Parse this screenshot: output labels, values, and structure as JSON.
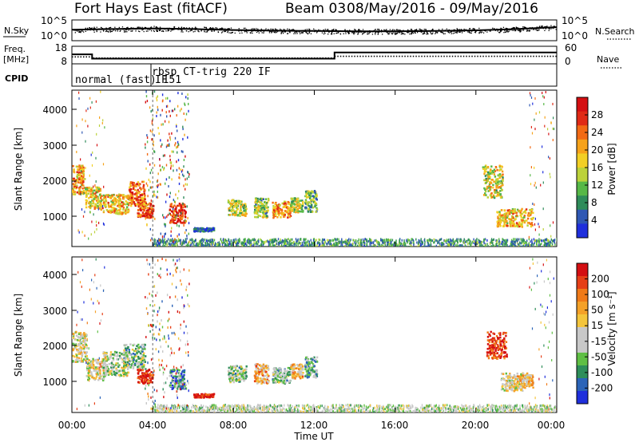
{
  "header": {
    "title": "Fort Hays East (fitACF)",
    "beam": "Beam 03",
    "date_range": "08/May/2016 - 09/May/2016"
  },
  "side_labels": {
    "nsky": "N.Sky",
    "freq_line1": "Freq.",
    "freq_line2": "[MHz]",
    "cpid": "CPID",
    "nsearch": "N.Search",
    "nave": "Nave"
  },
  "cpid_labels": [
    "normal (fast) 151",
    "rbsp CT-trig 220 IF",
    "IF"
  ],
  "colorbars": {
    "power": {
      "label": "Power [dB]",
      "ticks": [
        "28",
        "24",
        "20",
        "16",
        "12",
        "8",
        "4"
      ],
      "colors": [
        "#1f2fdc",
        "#2f58b4",
        "#2f8c5a",
        "#57b847",
        "#bcd23a",
        "#f2cf25",
        "#f6a21a",
        "#f26a14",
        "#e02a15",
        "#d40f12"
      ]
    },
    "velocity": {
      "label": "Velocity [m s⁻¹]",
      "ticks": [
        "200",
        "100",
        "50",
        "15",
        "-15",
        "-50",
        "-100",
        "-200"
      ],
      "colors": [
        "#1f2fdc",
        "#2b64b8",
        "#2e8e5a",
        "#5fbf44",
        "#c8c8c8",
        "#c8c8c8",
        "#f4c53c",
        "#f4a128",
        "#f07a18",
        "#e63f17",
        "#d40f12"
      ]
    }
  },
  "chart_data": [
    {
      "type": "line",
      "name": "sky noise",
      "ylabel": "N.Sky",
      "yticks": [
        "10^5",
        "10^0"
      ],
      "y2label": "N.Search",
      "y2ticks": [
        "10^5",
        "10^0"
      ],
      "x": [
        "00:00",
        "02:00",
        "04:00",
        "06:00",
        "08:00",
        "10:00",
        "12:00",
        "14:00",
        "16:00",
        "18:00",
        "20:00",
        "22:00",
        "24:00"
      ],
      "values": [
        3.2,
        3.4,
        3.6,
        3.4,
        3.1,
        2.9,
        2.8,
        2.7,
        2.7,
        2.8,
        3.0,
        3.4,
        4.0
      ]
    },
    {
      "type": "line",
      "ylabel": "Freq. [MHz]",
      "yticks": [
        "18",
        "8"
      ],
      "y2label": "Nave",
      "y2ticks": [
        "60",
        "0"
      ],
      "series": [
        {
          "x": [
            0,
            1.0,
            1.0,
            13.0,
            13.0,
            24
          ],
          "values": [
            13.5,
            13.5,
            10.5,
            10.5,
            14.8,
            14.8
          ]
        },
        {
          "x": [
            0,
            1.0,
            1.0,
            13.0,
            13.0,
            24
          ],
          "values": [
            11.7,
            11.7,
            10.9,
            10.9,
            12.1,
            12.1
          ]
        }
      ]
    },
    {
      "type": "heatmap",
      "ylabel": "Slant Range [km]",
      "yticks": [
        "4000",
        "3000",
        "2000",
        "1000"
      ],
      "ylim": [
        180,
        4500
      ],
      "colorbar": "Power [dB]",
      "clim": [
        0,
        30
      ],
      "patches": [
        {
          "t0": 0.0,
          "t1": 0.6,
          "r0": 1650,
          "r1": 2450,
          "v": 20
        },
        {
          "t0": 0.6,
          "t1": 1.4,
          "r0": 1250,
          "r1": 1850,
          "v": 16
        },
        {
          "t0": 1.4,
          "t1": 2.8,
          "r0": 1100,
          "r1": 1650,
          "v": 18
        },
        {
          "t0": 2.8,
          "t1": 3.6,
          "r0": 1300,
          "r1": 2000,
          "v": 22
        },
        {
          "t0": 3.2,
          "t1": 4.0,
          "r0": 1000,
          "r1": 1400,
          "v": 24
        },
        {
          "t0": 4.8,
          "t1": 5.6,
          "r0": 850,
          "r1": 1400,
          "v": 27
        },
        {
          "t0": 6.0,
          "t1": 7.0,
          "r0": 620,
          "r1": 720,
          "v": 5
        },
        {
          "t0": 7.7,
          "t1": 8.6,
          "r0": 1050,
          "r1": 1500,
          "v": 14
        },
        {
          "t0": 9.0,
          "t1": 9.7,
          "r0": 1000,
          "r1": 1550,
          "v": 12
        },
        {
          "t0": 9.9,
          "t1": 10.8,
          "r0": 1000,
          "r1": 1450,
          "v": 20
        },
        {
          "t0": 10.8,
          "t1": 11.4,
          "r0": 1150,
          "r1": 1550,
          "v": 14
        },
        {
          "t0": 11.5,
          "t1": 12.1,
          "r0": 1150,
          "r1": 1750,
          "v": 10
        },
        {
          "t0": 20.3,
          "t1": 21.3,
          "r0": 1550,
          "r1": 2450,
          "v": 15
        },
        {
          "t0": 21.0,
          "t1": 22.8,
          "r0": 750,
          "r1": 1250,
          "v": 18
        },
        {
          "t0": 4.0,
          "t1": 24.0,
          "r0": 200,
          "r1": 420,
          "v": 8
        }
      ]
    },
    {
      "type": "heatmap",
      "ylabel": "Slant Range [km]",
      "yticks": [
        "4000",
        "3000",
        "2000",
        "1000"
      ],
      "ylim": [
        180,
        4500
      ],
      "xlabel": "Time UT",
      "xticks": [
        "00:00",
        "04:00",
        "08:00",
        "12:00",
        "16:00",
        "20:00",
        "00:00"
      ],
      "colorbar": "Velocity [m s⁻¹]",
      "clim": [
        -250,
        250
      ],
      "patches": [
        {
          "t0": 0.0,
          "t1": 0.7,
          "r0": 1600,
          "r1": 2450,
          "v": 0
        },
        {
          "t0": 0.7,
          "t1": 1.6,
          "r0": 1100,
          "r1": 1700,
          "v": -5
        },
        {
          "t0": 1.5,
          "t1": 2.8,
          "r0": 1200,
          "r1": 1900,
          "v": -40
        },
        {
          "t0": 2.5,
          "t1": 3.6,
          "r0": 1400,
          "r1": 2100,
          "v": -60
        },
        {
          "t0": 3.2,
          "t1": 4.0,
          "r0": 1000,
          "r1": 1400,
          "v": 220
        },
        {
          "t0": 4.8,
          "t1": 5.6,
          "r0": 850,
          "r1": 1400,
          "v": -150
        },
        {
          "t0": 6.0,
          "t1": 7.0,
          "r0": 620,
          "r1": 720,
          "v": 220
        },
        {
          "t0": 7.7,
          "t1": 8.6,
          "r0": 1050,
          "r1": 1500,
          "v": -60
        },
        {
          "t0": 9.0,
          "t1": 9.7,
          "r0": 1000,
          "r1": 1550,
          "v": 80
        },
        {
          "t0": 9.9,
          "t1": 10.8,
          "r0": 1000,
          "r1": 1450,
          "v": -70
        },
        {
          "t0": 10.8,
          "t1": 11.4,
          "r0": 1150,
          "r1": 1550,
          "v": 60
        },
        {
          "t0": 11.5,
          "t1": 12.1,
          "r0": 1150,
          "r1": 1750,
          "v": -90
        },
        {
          "t0": 20.5,
          "t1": 21.5,
          "r0": 1700,
          "r1": 2450,
          "v": 210
        },
        {
          "t0": 21.2,
          "t1": 22.5,
          "r0": 800,
          "r1": 1300,
          "v": 0
        },
        {
          "t0": 22.0,
          "t1": 22.8,
          "r0": 900,
          "r1": 1250,
          "v": 40
        },
        {
          "t0": 4.0,
          "t1": 24.0,
          "r0": 200,
          "r1": 420,
          "v": -40
        }
      ]
    }
  ]
}
